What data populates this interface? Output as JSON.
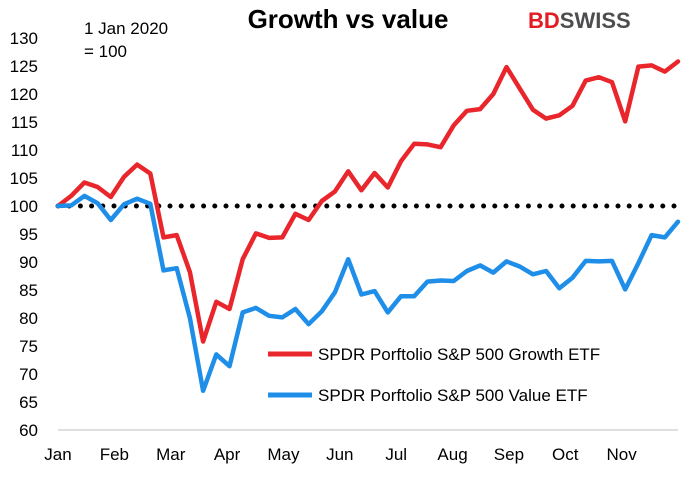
{
  "chart_data": {
    "type": "line",
    "title": "Growth vs value",
    "annotation_line1": "1 Jan 2020",
    "annotation_line2": "= 100",
    "brand_bd": "BD",
    "brand_swiss": "SWISS",
    "x_labels": [
      "Jan",
      "Feb",
      "Mar",
      "Apr",
      "May",
      "Jun",
      "Jul",
      "Aug",
      "Sep",
      "Oct",
      "Nov"
    ],
    "ylim": [
      60,
      130
    ],
    "y_ticks": [
      60,
      65,
      70,
      75,
      80,
      85,
      90,
      95,
      100,
      105,
      110,
      115,
      120,
      125,
      130
    ],
    "reference_value": 100,
    "legend_position": "center-right",
    "series": [
      {
        "name": "SPDR Porftolio S&P 500 Growth ETF",
        "color": "#e8262b",
        "values": [
          100,
          101.8,
          104.2,
          103.4,
          101.6,
          105.2,
          107.4,
          105.8,
          94.4,
          94.8,
          88.2,
          75.8,
          82.9,
          81.6,
          90.5,
          95.1,
          94.3,
          94.4,
          98.6,
          97.5,
          100.9,
          102.6,
          106.2,
          102.8,
          105.9,
          103.3,
          108,
          111.1,
          111,
          110.5,
          114.4,
          117,
          117.3,
          120,
          124.8,
          121,
          117.2,
          115.6,
          116.2,
          117.9,
          122.4,
          123,
          122.1,
          115.1,
          124.9,
          125.1,
          124,
          125.8
        ]
      },
      {
        "name": "SPDR Porftolio S&P 500 Value ETF",
        "color": "#1e8ee8",
        "values": [
          100,
          100.1,
          101.8,
          100.5,
          97.5,
          100.3,
          101.3,
          100.4,
          88.5,
          88.9,
          80,
          67,
          73.5,
          71.4,
          81,
          81.8,
          80.4,
          80.1,
          81.6,
          78.9,
          81.2,
          84.6,
          90.5,
          84.2,
          84.8,
          81,
          83.9,
          83.9,
          86.5,
          86.7,
          86.6,
          88.4,
          89.4,
          88.1,
          90.1,
          89.2,
          87.8,
          88.4,
          85.3,
          87.2,
          90.2,
          90.1,
          90.2,
          85.1,
          89.8,
          94.8,
          94.4,
          97.2
        ]
      }
    ]
  }
}
